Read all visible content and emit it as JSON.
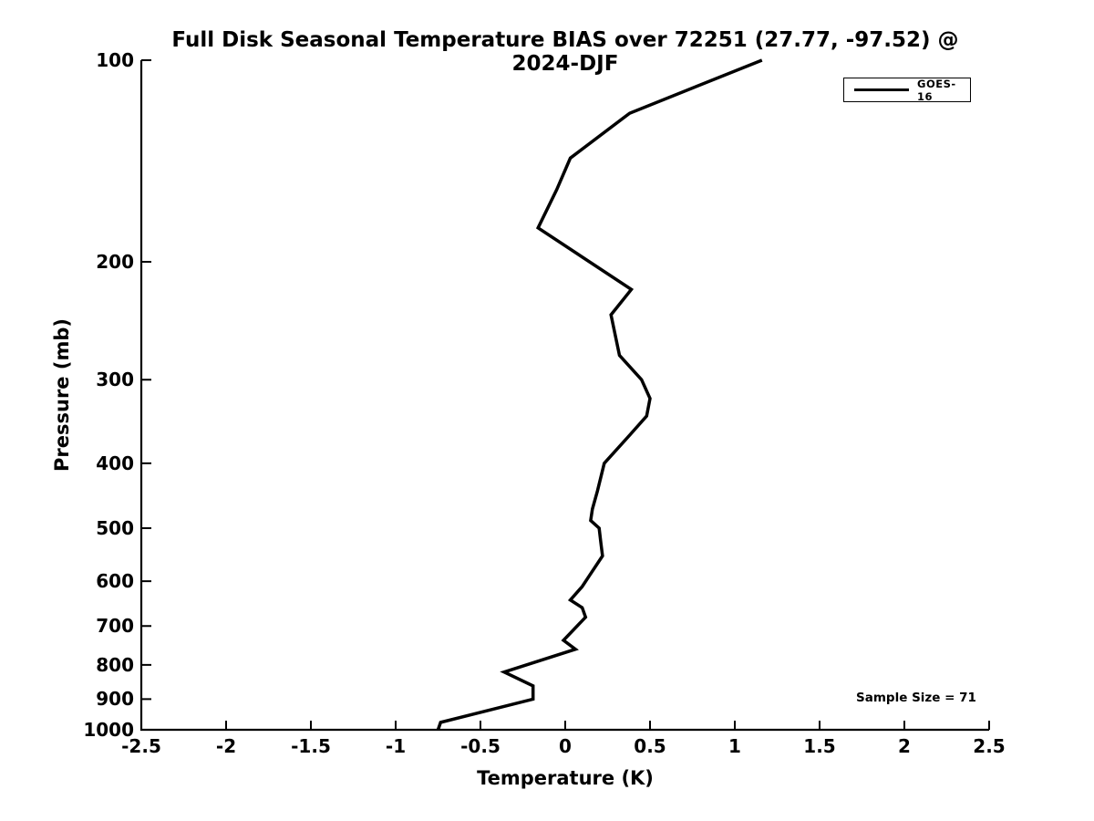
{
  "meta": {
    "station_id": "72251",
    "station_coords": "27.77, -97.52",
    "period": "2024-DJF"
  },
  "colors": {
    "background": "#ffffff",
    "axis": "#000000",
    "text": "#000000",
    "series_goes16": "#000000"
  },
  "annotation": {
    "sample_size_text": "Sample Size = 71"
  },
  "chart_data": {
    "type": "line",
    "title": "Full Disk Seasonal Temperature BIAS over 72251 (27.77, -97.52) @ 2024-DJF",
    "xlabel": "Temperature (K)",
    "ylabel": "Pressure (mb)",
    "xlim": [
      -2.5,
      2.5
    ],
    "ylim": [
      100,
      1000
    ],
    "y_scale": "log",
    "y_inverted": true,
    "grid": false,
    "x_ticks": [
      -2.5,
      -2,
      -1.5,
      -1,
      -0.5,
      0,
      0.5,
      1,
      1.5,
      2,
      2.5
    ],
    "x_tick_labels": [
      "-2.5",
      "-2",
      "-1.5",
      "-1",
      "-0.5",
      "0",
      "0.5",
      "1",
      "1.5",
      "2",
      "2.5"
    ],
    "y_ticks": [
      100,
      200,
      300,
      400,
      500,
      600,
      700,
      800,
      900,
      1000
    ],
    "y_tick_labels": [
      "100",
      "200",
      "300",
      "400",
      "500",
      "600",
      "700",
      "800",
      "900",
      "1000"
    ],
    "legend": {
      "position": "top-right",
      "entries": [
        {
          "label": "GOES-16",
          "color": "#000000"
        }
      ]
    },
    "series": [
      {
        "name": "GOES-16",
        "color": "#000000",
        "point_format": "[temperature_bias_K, pressure_mb]",
        "points": [
          [
            1.16,
            100
          ],
          [
            0.38,
            120
          ],
          [
            0.03,
            140
          ],
          [
            -0.05,
            156
          ],
          [
            -0.16,
            178
          ],
          [
            0.39,
            220
          ],
          [
            0.27,
            240
          ],
          [
            0.32,
            276
          ],
          [
            0.45,
            300
          ],
          [
            0.5,
            320
          ],
          [
            0.48,
            340
          ],
          [
            0.38,
            363
          ],
          [
            0.23,
            400
          ],
          [
            0.19,
            440
          ],
          [
            0.16,
            468
          ],
          [
            0.15,
            487
          ],
          [
            0.2,
            500
          ],
          [
            0.21,
            526
          ],
          [
            0.22,
            550
          ],
          [
            0.14,
            590
          ],
          [
            0.1,
            611
          ],
          [
            0.03,
            640
          ],
          [
            0.1,
            657
          ],
          [
            0.12,
            679
          ],
          [
            -0.01,
            735
          ],
          [
            0.06,
            758
          ],
          [
            -0.36,
            820
          ],
          [
            -0.19,
            860
          ],
          [
            -0.19,
            900
          ],
          [
            -0.735,
            975
          ],
          [
            -0.75,
            1000
          ]
        ]
      }
    ]
  }
}
